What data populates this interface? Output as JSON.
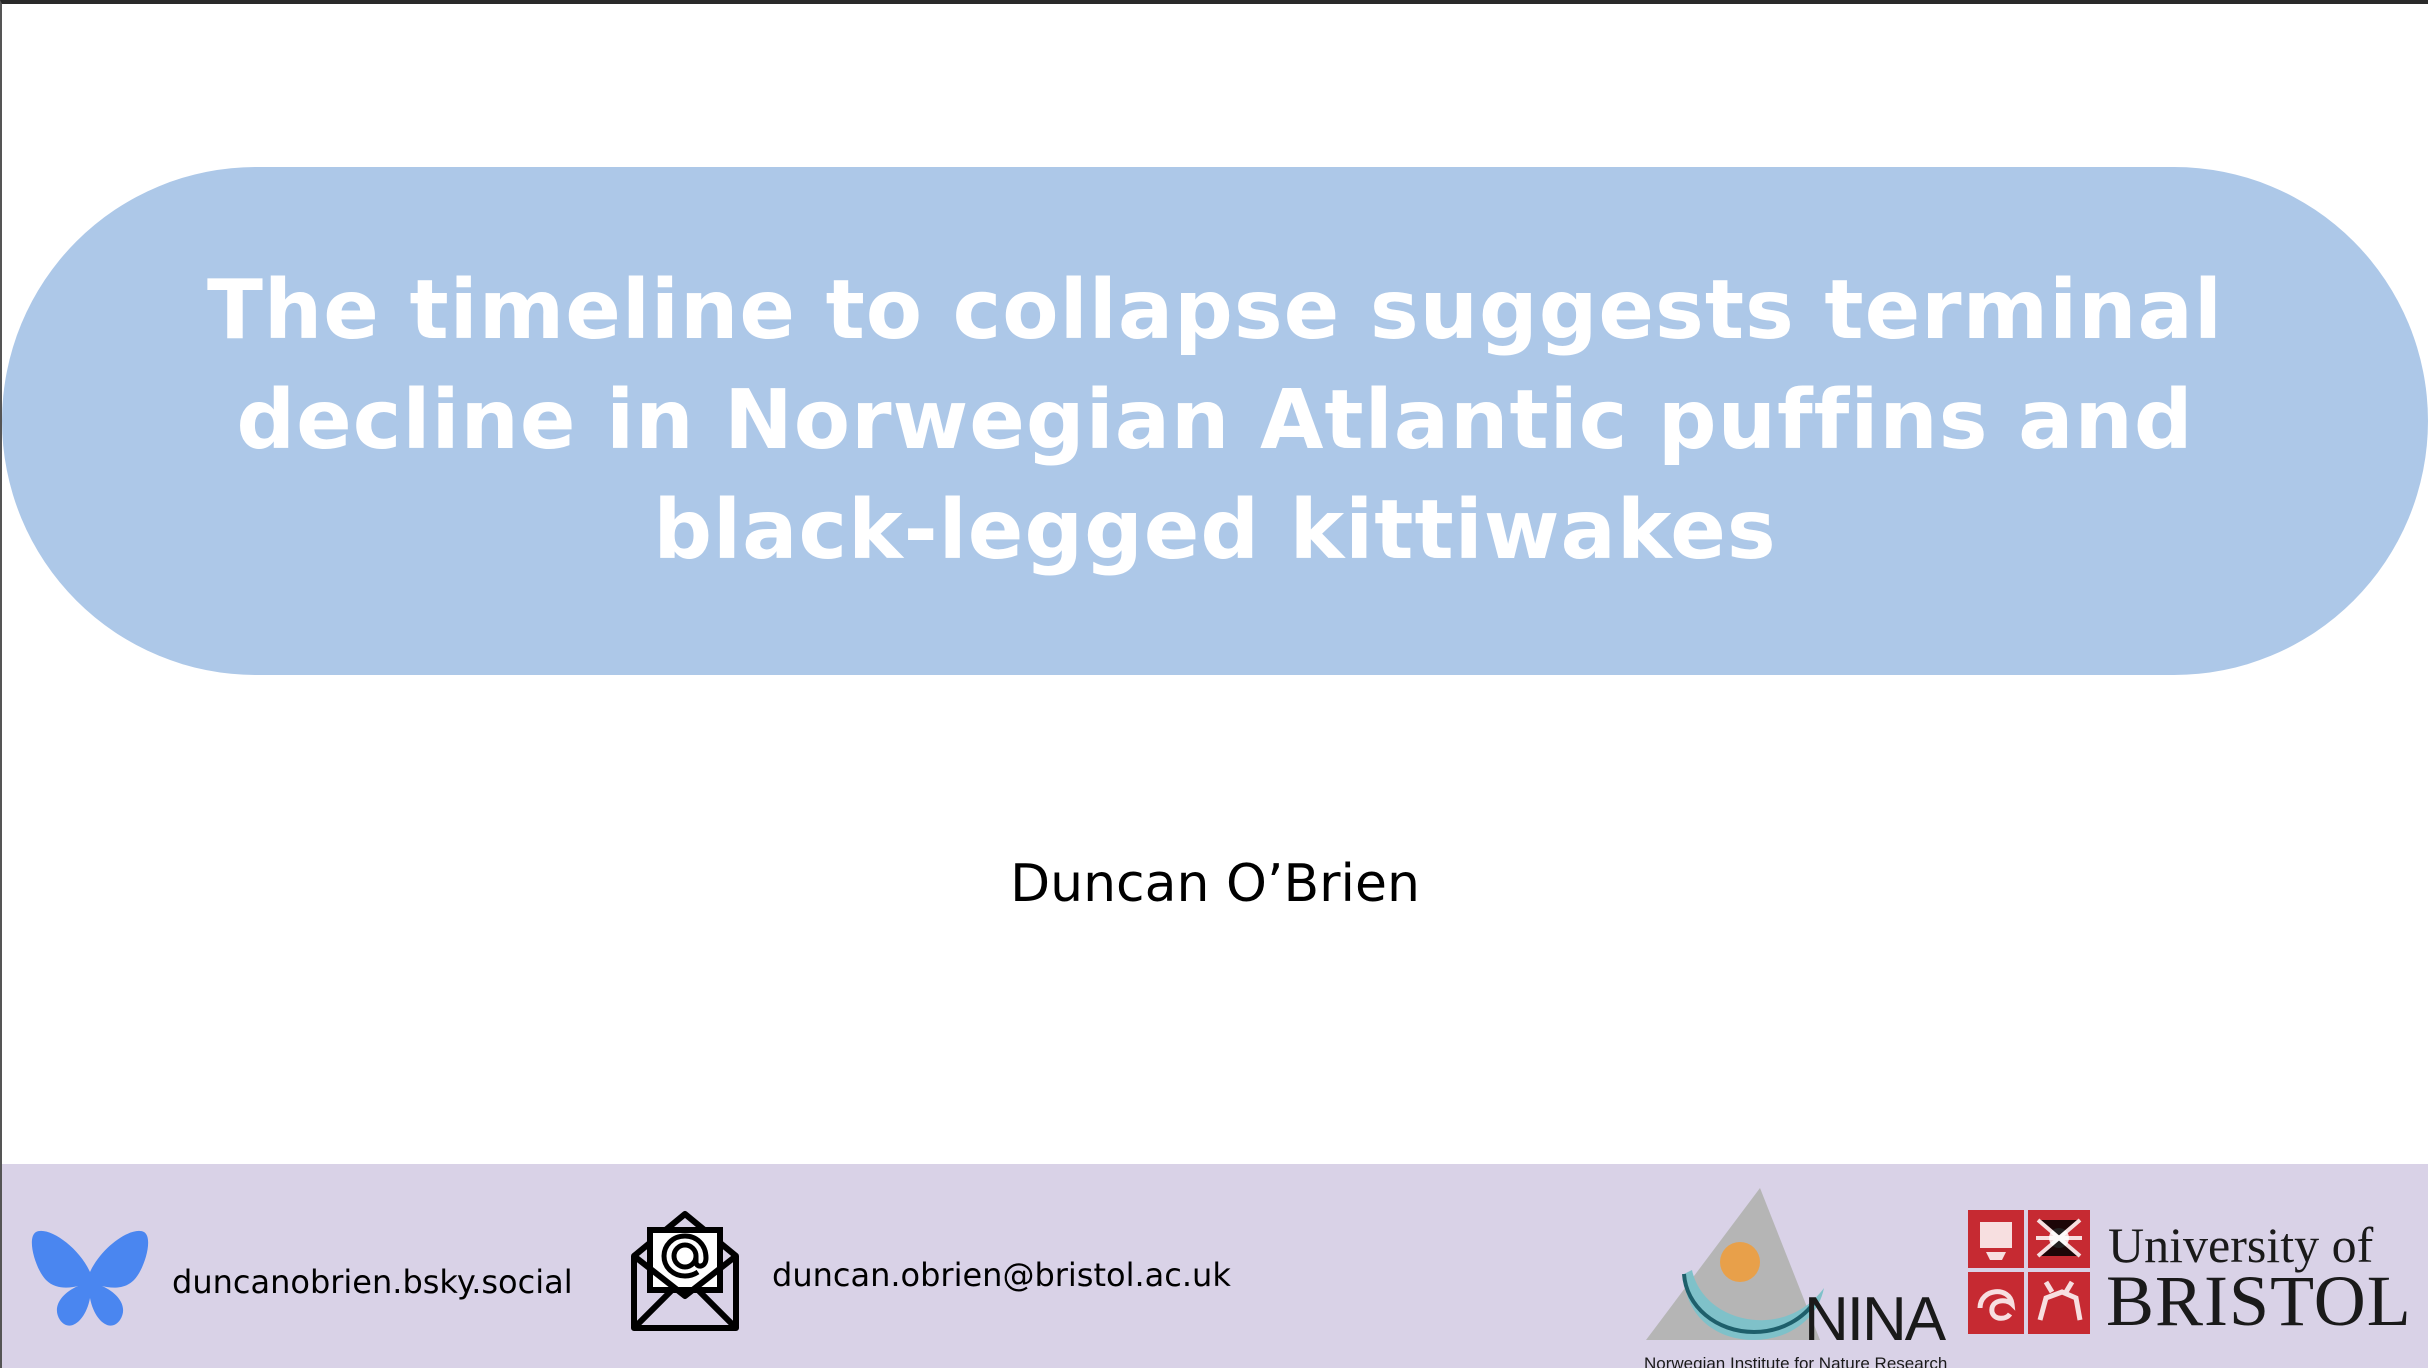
{
  "slide": {
    "title": "The timeline to collapse suggests terminal decline in Norwegian Atlantic puffins and black-legged kittiwakes",
    "author": "Duncan O’Brien"
  },
  "footer": {
    "bluesky": {
      "icon": "butterfly-icon",
      "handle": "duncanobrien.bsky.social",
      "color": "#4a86f0"
    },
    "email": {
      "icon": "envelope-at-icon",
      "address": "duncan.obrien@bristol.ac.uk"
    },
    "nina": {
      "name": "NINA",
      "subtitle": "Norwegian Institute for Nature Research"
    },
    "bristol": {
      "line1": "University of",
      "line2": "BRISTOL",
      "crest_color": "#c62a32"
    }
  },
  "colors": {
    "title_pill": "#adc8e8",
    "footer_band": "#d9d2e7"
  }
}
